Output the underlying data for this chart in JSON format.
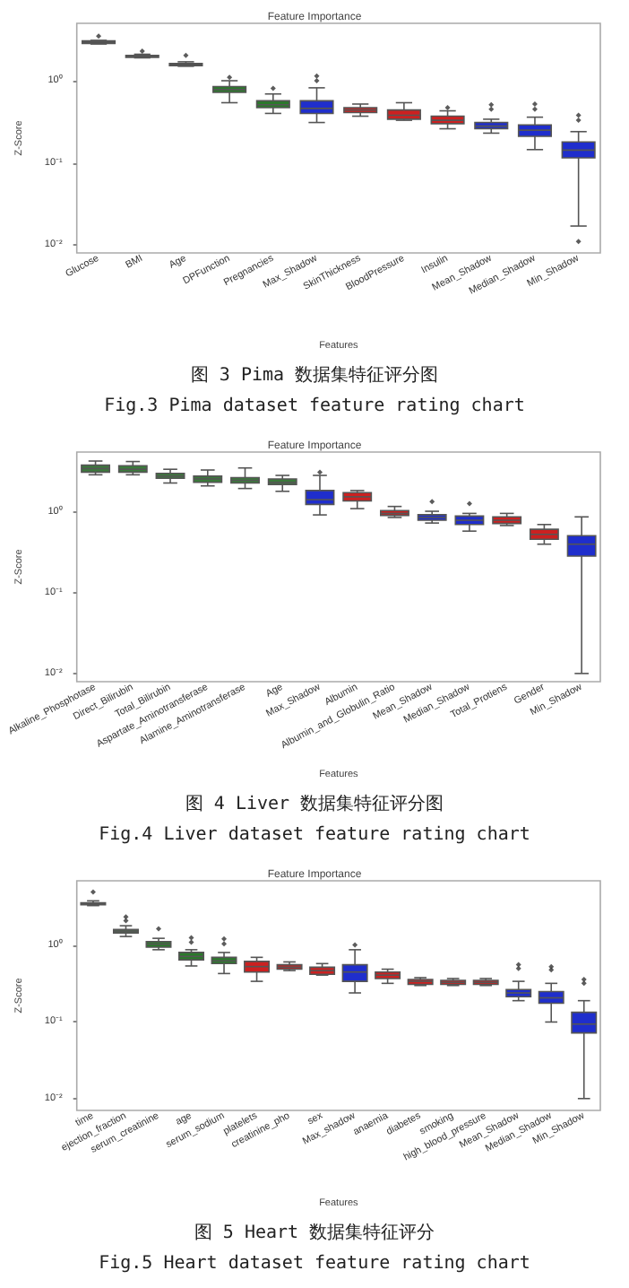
{
  "chart_data": [
    {
      "type": "box",
      "title": "Feature Importance",
      "xlabel": "Features",
      "ylabel": "Z-Score",
      "log": true,
      "ylim": [
        0.008,
        5
      ],
      "yticks": [
        {
          "value": 0.01,
          "label": "10⁻²"
        },
        {
          "value": 0.1,
          "label": "10⁻¹"
        },
        {
          "value": 1,
          "label": "10⁰"
        }
      ],
      "categories": [
        "Glucose",
        "BMI",
        "Age",
        "DPFunction",
        "Pregnancies",
        "Max_Shadow",
        "SkinThickness",
        "BloodPressure",
        "Insulin",
        "Mean_Shadow",
        "Median_Shadow",
        "Min_Shadow"
      ],
      "colors": [
        "#444444",
        "#444444",
        "#444444",
        "#2a7a2a",
        "#2a7a2a",
        "#1f2ecc",
        "#cc2020",
        "#cc2020",
        "#cc2020",
        "#1f2ecc",
        "#1f2ecc",
        "#1f2ecc"
      ],
      "boxes": [
        {
          "low": 2.8,
          "q1": 2.85,
          "median": 2.96,
          "q3": 3.05,
          "high": 3.1,
          "outliers": [
            3.5
          ]
        },
        {
          "low": 1.9,
          "q1": 1.93,
          "median": 1.98,
          "q3": 2.03,
          "high": 2.1,
          "outliers": [
            2.3
          ]
        },
        {
          "low": 1.5,
          "q1": 1.53,
          "median": 1.57,
          "q3": 1.62,
          "high": 1.7,
          "outliers": [
            2.04
          ]
        },
        {
          "low": 0.54,
          "q1": 0.72,
          "median": 0.78,
          "q3": 0.85,
          "high": 1.0,
          "outliers": [
            1.1
          ]
        },
        {
          "low": 0.4,
          "q1": 0.47,
          "median": 0.51,
          "q3": 0.57,
          "high": 0.69,
          "outliers": [
            0.81
          ]
        },
        {
          "low": 0.31,
          "q1": 0.4,
          "median": 0.46,
          "q3": 0.57,
          "high": 0.82,
          "outliers": [
            1.0,
            1.14
          ]
        },
        {
          "low": 0.37,
          "q1": 0.41,
          "median": 0.44,
          "q3": 0.47,
          "high": 0.52
        },
        {
          "low": 0.33,
          "q1": 0.34,
          "median": 0.38,
          "q3": 0.44,
          "high": 0.54
        },
        {
          "low": 0.26,
          "q1": 0.3,
          "median": 0.33,
          "q3": 0.37,
          "high": 0.43,
          "outliers": [
            0.47
          ]
        },
        {
          "low": 0.23,
          "q1": 0.26,
          "median": 0.28,
          "q3": 0.31,
          "high": 0.34,
          "outliers": [
            0.45,
            0.51
          ]
        },
        {
          "low": 0.145,
          "q1": 0.21,
          "median": 0.25,
          "q3": 0.29,
          "high": 0.36,
          "outliers": [
            0.45,
            0.52
          ]
        },
        {
          "low": 0.017,
          "q1": 0.115,
          "median": 0.143,
          "q3": 0.18,
          "high": 0.24,
          "outliers": [
            0.011,
            0.33,
            0.38
          ]
        }
      ],
      "annotations": [
        "图 3 Pima 数据集特征评分图",
        "Fig.3 Pima dataset feature rating chart"
      ]
    },
    {
      "type": "box",
      "title": "Feature Importance",
      "xlabel": "Features",
      "ylabel": "Z-Score",
      "log": true,
      "ylim": [
        0.008,
        5.5
      ],
      "yticks": [
        {
          "value": 0.01,
          "label": "10⁻²"
        },
        {
          "value": 0.1,
          "label": "10⁻¹"
        },
        {
          "value": 1,
          "label": "10⁰"
        }
      ],
      "categories": [
        "Alkaline_Phosphotase",
        "Direct_Bilirubin",
        "Total_Bilirubin",
        "Aspartate_Aminotransferase",
        "Alamine_Aminotransferase",
        "Age",
        "Max_Shadow",
        "Albumin",
        "Albumin_and_Globulin_Ratio",
        "Mean_Shadow",
        "Median_Shadow",
        "Total_Protiens",
        "Gender",
        "Min_Shadow"
      ],
      "colors": [
        "#3a7a3a",
        "#3a7a3a",
        "#3a7a3a",
        "#3a7a3a",
        "#3a7a3a",
        "#3a7a3a",
        "#1f2ecc",
        "#cc2020",
        "#cc2020",
        "#1f2ecc",
        "#1f2ecc",
        "#cc2020",
        "#cc2020",
        "#1f2ecc"
      ],
      "boxes": [
        {
          "low": 2.88,
          "q1": 3.11,
          "median": 3.44,
          "q3": 3.79,
          "high": 4.26
        },
        {
          "low": 2.88,
          "q1": 3.11,
          "median": 3.37,
          "q3": 3.72,
          "high": 4.2
        },
        {
          "low": 2.28,
          "q1": 2.61,
          "median": 2.77,
          "q3": 3.0,
          "high": 3.37
        },
        {
          "low": 2.1,
          "q1": 2.32,
          "median": 2.56,
          "q3": 2.77,
          "high": 3.3
        },
        {
          "low": 1.95,
          "q1": 2.28,
          "median": 2.46,
          "q3": 2.66,
          "high": 3.5
        },
        {
          "low": 1.8,
          "q1": 2.19,
          "median": 2.32,
          "q3": 2.56,
          "high": 2.83
        },
        {
          "low": 0.92,
          "q1": 1.24,
          "median": 1.42,
          "q3": 1.84,
          "high": 2.83,
          "outliers": [
            3.1
          ]
        },
        {
          "low": 1.1,
          "q1": 1.37,
          "median": 1.54,
          "q3": 1.73,
          "high": 1.84
        },
        {
          "low": 0.855,
          "q1": 0.906,
          "median": 0.96,
          "q3": 1.04,
          "high": 1.17
        },
        {
          "low": 0.73,
          "q1": 0.79,
          "median": 0.855,
          "q3": 0.924,
          "high": 1.02,
          "outliers": [
            1.34
          ]
        },
        {
          "low": 0.58,
          "q1": 0.7,
          "median": 0.79,
          "q3": 0.89,
          "high": 0.96,
          "outliers": [
            1.27
          ]
        },
        {
          "low": 0.68,
          "q1": 0.72,
          "median": 0.79,
          "q3": 0.87,
          "high": 0.96
        },
        {
          "low": 0.4,
          "q1": 0.46,
          "median": 0.53,
          "q3": 0.61,
          "high": 0.7
        },
        {
          "low": 0.0101,
          "q1": 0.285,
          "median": 0.4,
          "q3": 0.51,
          "high": 0.87
        }
      ],
      "annotations": [
        "图 4 Liver 数据集特征评分图",
        "Fig.4 Liver dataset feature rating chart"
      ]
    },
    {
      "type": "box",
      "title": "Feature Importance",
      "xlabel": "Features",
      "ylabel": "Z-Score",
      "log": true,
      "ylim": [
        0.007,
        7
      ],
      "yticks": [
        {
          "value": 0.01,
          "label": "10⁻²"
        },
        {
          "value": 0.1,
          "label": "10⁻¹"
        },
        {
          "value": 1,
          "label": "10⁰"
        }
      ],
      "categories": [
        "time",
        "ejection_fraction",
        "serum_creatinine",
        "age",
        "serum_sodium",
        "platelets",
        "creatinine_pho",
        "sex",
        "Max_shadow",
        "anaemia",
        "diabetes",
        "smoking",
        "high_blood_pressure",
        "Mean_Shadow",
        "Median_Shadow",
        "Min_Shadow"
      ],
      "colors": [
        "#444444",
        "#4f6f4f",
        "#2a7a2a",
        "#2a7a2a",
        "#2a7a2a",
        "#cc2020",
        "#cc2020",
        "#cc2020",
        "#1f2ecc",
        "#cc2020",
        "#cc2020",
        "#cc2020",
        "#cc2020",
        "#1f2ecc",
        "#1f2ecc",
        "#1f2ecc"
      ],
      "boxes": [
        {
          "low": 3.32,
          "q1": 3.4,
          "median": 3.5,
          "q3": 3.6,
          "high": 3.83,
          "outliers": [
            5.0
          ]
        },
        {
          "low": 1.31,
          "q1": 1.46,
          "median": 1.54,
          "q3": 1.62,
          "high": 1.81,
          "outliers": [
            2.1,
            2.36
          ]
        },
        {
          "low": 0.88,
          "q1": 0.95,
          "median": 1.04,
          "q3": 1.12,
          "high": 1.24,
          "outliers": [
            1.65
          ]
        },
        {
          "low": 0.54,
          "q1": 0.65,
          "median": 0.72,
          "q3": 0.81,
          "high": 0.88,
          "outliers": [
            1.1,
            1.26
          ]
        },
        {
          "low": 0.43,
          "q1": 0.58,
          "median": 0.63,
          "q3": 0.7,
          "high": 0.81,
          "outliers": [
            1.05,
            1.22
          ]
        },
        {
          "low": 0.34,
          "q1": 0.45,
          "median": 0.53,
          "q3": 0.62,
          "high": 0.7
        },
        {
          "low": 0.47,
          "q1": 0.49,
          "median": 0.52,
          "q3": 0.56,
          "high": 0.61
        },
        {
          "low": 0.41,
          "q1": 0.42,
          "median": 0.47,
          "q3": 0.52,
          "high": 0.58
        },
        {
          "low": 0.24,
          "q1": 0.34,
          "median": 0.45,
          "q3": 0.56,
          "high": 0.88,
          "outliers": [
            1.02
          ]
        },
        {
          "low": 0.32,
          "q1": 0.37,
          "median": 0.41,
          "q3": 0.45,
          "high": 0.49
        },
        {
          "low": 0.3,
          "q1": 0.31,
          "median": 0.34,
          "q3": 0.36,
          "high": 0.38
        },
        {
          "low": 0.3,
          "q1": 0.31,
          "median": 0.33,
          "q3": 0.35,
          "high": 0.37
        },
        {
          "low": 0.3,
          "q1": 0.31,
          "median": 0.33,
          "q3": 0.35,
          "high": 0.37
        },
        {
          "low": 0.19,
          "q1": 0.214,
          "median": 0.24,
          "q3": 0.266,
          "high": 0.34,
          "outliers": [
            0.5,
            0.56
          ]
        },
        {
          "low": 0.1,
          "q1": 0.176,
          "median": 0.207,
          "q3": 0.25,
          "high": 0.32,
          "outliers": [
            0.48,
            0.53
          ]
        },
        {
          "low": 0.01,
          "q1": 0.072,
          "median": 0.094,
          "q3": 0.134,
          "high": 0.19,
          "outliers": [
            0.32,
            0.36
          ]
        }
      ],
      "annotations": [
        "图 5 Heart 数据集特征评分",
        "Fig.5 Heart dataset feature rating chart"
      ]
    }
  ]
}
